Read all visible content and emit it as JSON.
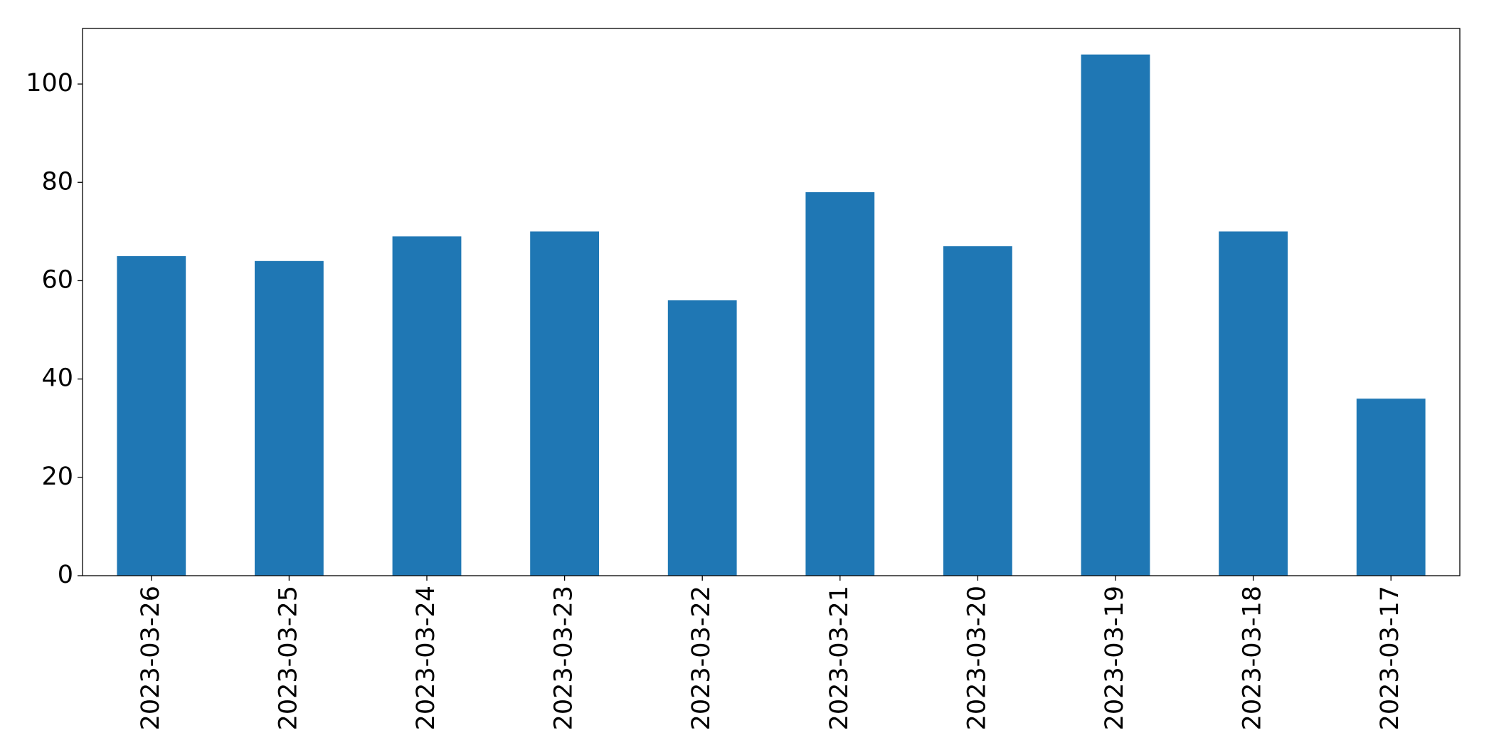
{
  "chart_data": {
    "type": "bar",
    "categories": [
      "2023-03-26",
      "2023-03-25",
      "2023-03-24",
      "2023-03-23",
      "2023-03-22",
      "2023-03-21",
      "2023-03-20",
      "2023-03-19",
      "2023-03-18",
      "2023-03-17"
    ],
    "values": [
      65,
      64,
      69,
      70,
      56,
      78,
      67,
      106,
      70,
      36
    ],
    "color": "#1f77b4",
    "ylim": [
      0,
      111.3
    ],
    "yticks": [
      0,
      20,
      40,
      60,
      80,
      100
    ],
    "grid": false
  }
}
